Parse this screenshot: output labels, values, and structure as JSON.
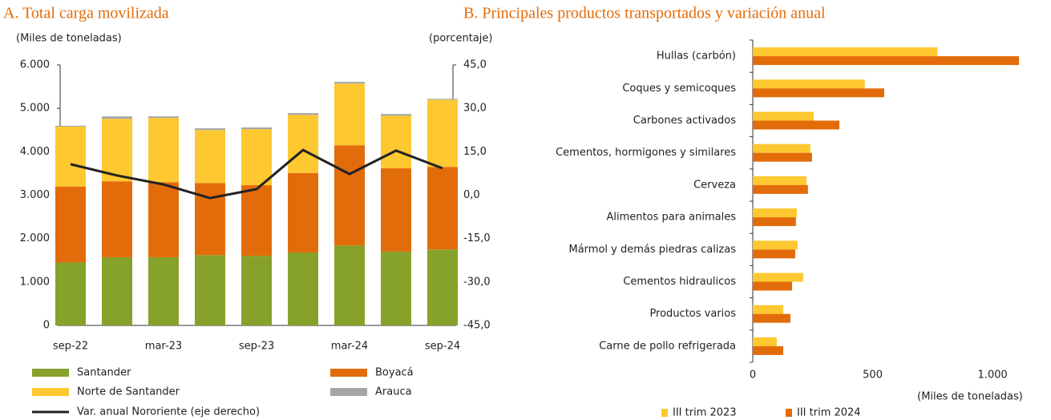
{
  "chart_data": [
    {
      "type": "bar",
      "stacked": true,
      "title": "A. Total carga movilizada",
      "y_label": "(Miles de toneladas)",
      "y2_label": "(porcentaje)",
      "categories": [
        "sep-22",
        null,
        "mar-23",
        null,
        "sep-23",
        null,
        "mar-24",
        null,
        "sep-24"
      ],
      "series": [
        {
          "name": "Santander",
          "color": "#86a22a",
          "values": [
            1450,
            1570,
            1570,
            1620,
            1600,
            1680,
            1840,
            1700,
            1750
          ]
        },
        {
          "name": "Boyacá",
          "color": "#e36c0a",
          "values": [
            1750,
            1750,
            1730,
            1660,
            1630,
            1830,
            2310,
            1920,
            1900
          ]
        },
        {
          "name": "Norte de Santander",
          "color": "#fdc830",
          "values": [
            1380,
            1440,
            1480,
            1220,
            1290,
            1340,
            1420,
            1210,
            1550
          ]
        },
        {
          "name": "Arauca",
          "color": "#a6a6a6",
          "values": [
            20,
            55,
            35,
            40,
            40,
            40,
            40,
            40,
            20
          ]
        },
        {
          "name": "Var. anual Nororiente (eje derecho)",
          "type": "line",
          "axis": "y2",
          "color": "#222222",
          "values": [
            10.7,
            6.8,
            3.7,
            -1.0,
            2.1,
            15.6,
            7.3,
            15.4,
            9.3
          ]
        }
      ],
      "ylim": [
        0,
        6000
      ],
      "yticks": [
        0,
        {
          "value": 1000,
          "label": "1.000"
        },
        {
          "value": 2000,
          "label": "2.000"
        },
        {
          "value": 3000,
          "label": "3.000"
        },
        {
          "value": 4000,
          "label": "4.000"
        },
        {
          "value": 5000,
          "label": "5.000"
        },
        {
          "value": 6000,
          "label": "6.000"
        }
      ],
      "y2lim": [
        -45,
        45
      ],
      "y2ticks": [
        {
          "value": -45,
          "label": "-45,0"
        },
        {
          "value": -30,
          "label": "-30,0"
        },
        {
          "value": -15,
          "label": "-15,0"
        },
        {
          "value": 0,
          "label": "0,0"
        },
        {
          "value": 15,
          "label": "15,0"
        },
        {
          "value": 30,
          "label": "30,0"
        },
        {
          "value": 45,
          "label": "45,0"
        }
      ],
      "grid": false
    },
    {
      "type": "hbar",
      "title": "B. Principales productos transportados y variación anual",
      "x_label": "(Miles de toneladas)",
      "categories": [
        "Hullas (carbón)",
        "Coques y semicoques",
        "Carbones activados",
        "Cementos, hormigones y similares",
        "Cerveza",
        "Alimentos para animales",
        "Mármol y demás piedras calizas",
        "Cementos hidraulicos",
        "Productos varios",
        "Carne de pollo refrigerada"
      ],
      "series": [
        {
          "name": "III trim 2023",
          "color": "#fdc830",
          "values": [
            770,
            467,
            254,
            240,
            224,
            184,
            187,
            210,
            127,
            100
          ]
        },
        {
          "name": "III trim 2024",
          "color": "#e36c0a",
          "values": [
            1110,
            548,
            361,
            247,
            230,
            180,
            177,
            164,
            157,
            127
          ]
        }
      ],
      "xlim": [
        0,
        1200
      ],
      "xticks": [
        0,
        500,
        {
          "value": 1000,
          "label": "1.000"
        }
      ],
      "grid": false
    }
  ]
}
